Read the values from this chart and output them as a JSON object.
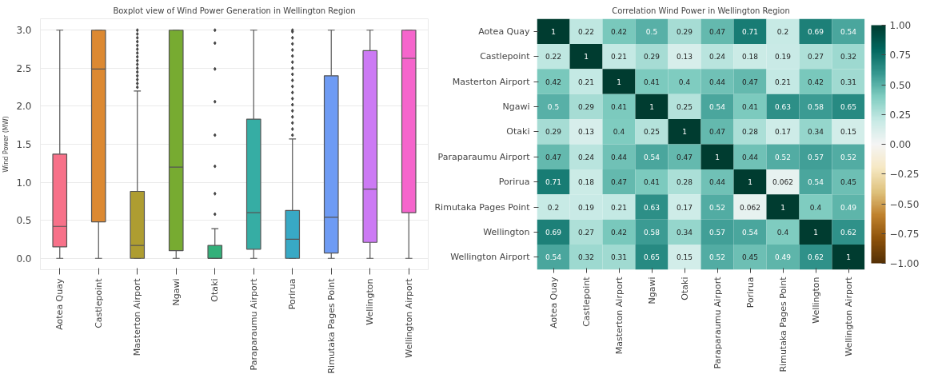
{
  "chart_data": [
    {
      "type": "box",
      "title": "Boxplot view of Wind Power Generation in Wellington Region",
      "ylabel": "Wind Power (MW)",
      "categories": [
        "Aotea Quay",
        "Castlepoint",
        "Masterton Airport",
        "Ngawi",
        "Otaki",
        "Paraparaumu Airport",
        "Porirua",
        "Rimutaka Pages Point",
        "Wellington",
        "Wellington Airport"
      ],
      "colors": [
        "#f77189",
        "#dc8932",
        "#ae9d31",
        "#77ab31",
        "#33b07a",
        "#36ada4",
        "#38a9c5",
        "#6e9bf4",
        "#cc7af4",
        "#f565cc"
      ],
      "boxes": [
        {
          "low": 0,
          "q1": 0.15,
          "median": 0.42,
          "q3": 1.37,
          "high": 3.0
        },
        {
          "low": 0,
          "q1": 0.48,
          "median": 2.49,
          "q3": 3.0,
          "high": 3.0
        },
        {
          "low": 0,
          "q1": 0,
          "median": 0.17,
          "q3": 0.88,
          "high": 2.2,
          "outliers": [
            2.25,
            2.3,
            2.35,
            2.4,
            2.45,
            2.5,
            2.55,
            2.6,
            2.65,
            2.7,
            2.75,
            2.8,
            2.85,
            2.9,
            2.95,
            3.0
          ]
        },
        {
          "low": 0,
          "q1": 0.1,
          "median": 1.2,
          "q3": 3.0,
          "high": 3.0
        },
        {
          "low": 0,
          "q1": 0,
          "median": 0,
          "q3": 0.17,
          "high": 0.39,
          "outliers": [
            0.58,
            0.85,
            1.21,
            1.62,
            2.06,
            2.49,
            2.83,
            3.0
          ]
        },
        {
          "low": 0,
          "q1": 0.12,
          "median": 0.6,
          "q3": 1.83,
          "high": 3.0
        },
        {
          "low": 0,
          "q1": 0,
          "median": 0.25,
          "q3": 0.63,
          "high": 1.57,
          "outliers": [
            1.62,
            1.7,
            1.78,
            1.86,
            1.94,
            2.02,
            2.1,
            2.18,
            2.26,
            2.34,
            2.42,
            2.5,
            2.58,
            2.66,
            2.74,
            2.82,
            2.9,
            2.98,
            3.0
          ]
        },
        {
          "low": 0,
          "q1": 0.07,
          "median": 0.54,
          "q3": 2.4,
          "high": 3.0
        },
        {
          "low": 0,
          "q1": 0.21,
          "median": 0.91,
          "q3": 2.73,
          "high": 3.0
        },
        {
          "low": 0,
          "q1": 0.6,
          "median": 2.63,
          "q3": 3.0,
          "high": 3.0
        }
      ],
      "ylim": [
        -0.15,
        3.15
      ],
      "yticks": [
        {
          "value": 0,
          "label": "0.0"
        },
        {
          "value": 0.5,
          "label": "0.5"
        },
        {
          "value": 1,
          "label": "1.0"
        },
        {
          "value": 1.5,
          "label": "1.5"
        },
        {
          "value": 2,
          "label": "2.0"
        },
        {
          "value": 2.5,
          "label": "2.5"
        },
        {
          "value": 3,
          "label": "3.0"
        }
      ],
      "grid": "y",
      "marker": "diamond"
    },
    {
      "type": "heatmap",
      "title": "Correlation Wind Power in Wellington Region",
      "categories": [
        "Aotea Quay",
        "Castlepoint",
        "Masterton Airport",
        "Ngawi",
        "Otaki",
        "Paraparaumu Airport",
        "Porirua",
        "Rimutaka Pages Point",
        "Wellington",
        "Wellington Airport"
      ],
      "y_categories": [
        "Aotea Quay",
        "Castlepoint",
        "Masterton Airport",
        "Ngawi",
        "Otaki",
        "Paraparaumu Airport",
        "Porirua",
        "Rimutaka Pages Point",
        "Wellington",
        "Wellington Airport"
      ],
      "cells": [
        [
          1,
          0.22,
          0.42,
          0.5,
          0.29,
          0.47,
          0.71,
          0.2,
          0.69,
          0.54
        ],
        [
          0.22,
          1,
          0.21,
          0.29,
          0.13,
          0.24,
          0.18,
          0.19,
          0.27,
          0.32
        ],
        [
          0.42,
          0.21,
          1,
          0.41,
          0.4,
          0.44,
          0.47,
          0.21,
          0.42,
          0.31
        ],
        [
          0.5,
          0.29,
          0.41,
          1,
          0.25,
          0.54,
          0.41,
          0.63,
          0.58,
          0.65
        ],
        [
          0.29,
          0.13,
          0.4,
          0.25,
          1,
          0.47,
          0.28,
          0.17,
          0.34,
          0.15
        ],
        [
          0.47,
          0.24,
          0.44,
          0.54,
          0.47,
          1,
          0.44,
          0.52,
          0.57,
          0.52
        ],
        [
          0.71,
          0.18,
          0.47,
          0.41,
          0.28,
          0.44,
          1,
          0.062,
          0.54,
          0.45
        ],
        [
          0.2,
          0.19,
          0.21,
          0.63,
          0.17,
          0.52,
          0.062,
          1,
          0.4,
          0.49
        ],
        [
          0.69,
          0.27,
          0.42,
          0.58,
          0.34,
          0.57,
          0.54,
          0.4,
          1,
          0.62
        ],
        [
          0.54,
          0.32,
          0.31,
          0.65,
          0.15,
          0.52,
          0.45,
          0.49,
          0.62,
          1
        ]
      ],
      "clim": [
        -1,
        1
      ],
      "cticks": [
        {
          "value": -1,
          "label": "−1.00"
        },
        {
          "value": -0.75,
          "label": "−0.75"
        },
        {
          "value": -0.5,
          "label": "−0.50"
        },
        {
          "value": -0.25,
          "label": "−0.25"
        },
        {
          "value": 0,
          "label": "0.00"
        },
        {
          "value": 0.25,
          "label": "0.25"
        },
        {
          "value": 0.5,
          "label": "0.50"
        },
        {
          "value": 0.75,
          "label": "0.75"
        },
        {
          "value": 1,
          "label": "1.00"
        }
      ],
      "data_labels": true
    }
  ]
}
